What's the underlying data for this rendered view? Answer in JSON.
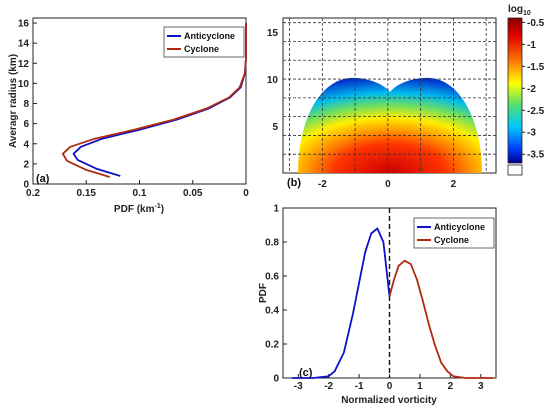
{
  "chart_data": [
    {
      "panel": "(a)",
      "type": "line",
      "xlabel": "PDF (km",
      "xlabel_sup": "-1",
      "xlabel_close": ")",
      "ylabel": "Averagr radius (km)",
      "xlim": [
        0.2,
        0
      ],
      "ylim": [
        0,
        16.5
      ],
      "xticks": [
        "0.2",
        "0.15",
        "0.1",
        "0.05",
        "0"
      ],
      "yticks": [
        "0",
        "2",
        "4",
        "6",
        "8",
        "10",
        "12",
        "14",
        "16"
      ],
      "legend": "top-right",
      "series": [
        {
          "name": "Anticyclone",
          "color": "#1010c8",
          "points": [
            [
              0.118,
              0.8
            ],
            [
              0.14,
              1.5
            ],
            [
              0.158,
              2.4
            ],
            [
              0.162,
              3.0
            ],
            [
              0.155,
              3.7
            ],
            [
              0.135,
              4.5
            ],
            [
              0.1,
              5.4
            ],
            [
              0.065,
              6.4
            ],
            [
              0.035,
              7.5
            ],
            [
              0.015,
              8.6
            ],
            [
              0.005,
              9.6
            ],
            [
              0.001,
              11
            ],
            [
              0,
              12.5
            ],
            [
              0,
              16
            ]
          ]
        },
        {
          "name": "Cyclone",
          "color": "#b02a10",
          "points": [
            [
              0.128,
              0.7
            ],
            [
              0.15,
              1.4
            ],
            [
              0.168,
              2.3
            ],
            [
              0.172,
              3.0
            ],
            [
              0.165,
              3.7
            ],
            [
              0.142,
              4.5
            ],
            [
              0.105,
              5.4
            ],
            [
              0.068,
              6.4
            ],
            [
              0.037,
              7.5
            ],
            [
              0.016,
              8.6
            ],
            [
              0.006,
              9.6
            ],
            [
              0.001,
              11
            ],
            [
              0,
              12.5
            ],
            [
              0,
              16
            ]
          ]
        }
      ]
    },
    {
      "panel": "(b)",
      "type": "heatmap",
      "xticks": [
        "-2",
        "0",
        "2"
      ],
      "yticks": [
        "5",
        "10",
        "15"
      ],
      "xlim": [
        -3.2,
        3.3
      ],
      "ylim": [
        0,
        16.5
      ],
      "colorbar_title": "log",
      "colorbar_title_sub": "10",
      "colorbar_ticks": [
        "-0.5",
        "-1",
        "-1.5",
        "-2",
        "-2.5",
        "-3",
        "-3.5"
      ],
      "colorbar_range": [
        -3.7,
        -0.4
      ],
      "grid": true
    },
    {
      "panel": "(c)",
      "type": "line",
      "xlabel": "Normalized vorticity",
      "ylabel": "PDF",
      "xlim": [
        -3.5,
        3.5
      ],
      "ylim": [
        0,
        1.0
      ],
      "xticks": [
        "-3",
        "-2",
        "-1",
        "0",
        "1",
        "2",
        "3"
      ],
      "yticks": [
        "0",
        "0.2",
        "0.4",
        "0.6",
        "0.8",
        "1"
      ],
      "legend": "top-right",
      "series": [
        {
          "name": "Anticyclone",
          "color": "#1010c8",
          "points": [
            [
              -3.2,
              0
            ],
            [
              -2.5,
              0
            ],
            [
              -2.0,
              0.01
            ],
            [
              -1.8,
              0.04
            ],
            [
              -1.5,
              0.15
            ],
            [
              -1.2,
              0.38
            ],
            [
              -1.0,
              0.56
            ],
            [
              -0.8,
              0.74
            ],
            [
              -0.6,
              0.85
            ],
            [
              -0.4,
              0.88
            ],
            [
              -0.2,
              0.8
            ],
            [
              0,
              0.48
            ]
          ]
        },
        {
          "name": "Cyclone",
          "color": "#b02a10",
          "points": [
            [
              0,
              0.48
            ],
            [
              0.15,
              0.58
            ],
            [
              0.3,
              0.66
            ],
            [
              0.5,
              0.69
            ],
            [
              0.7,
              0.67
            ],
            [
              0.9,
              0.58
            ],
            [
              1.1,
              0.45
            ],
            [
              1.3,
              0.31
            ],
            [
              1.5,
              0.19
            ],
            [
              1.7,
              0.09
            ],
            [
              1.9,
              0.04
            ],
            [
              2.1,
              0.01
            ],
            [
              2.5,
              0
            ],
            [
              3.4,
              0
            ]
          ]
        }
      ],
      "vline_x": 0
    }
  ]
}
